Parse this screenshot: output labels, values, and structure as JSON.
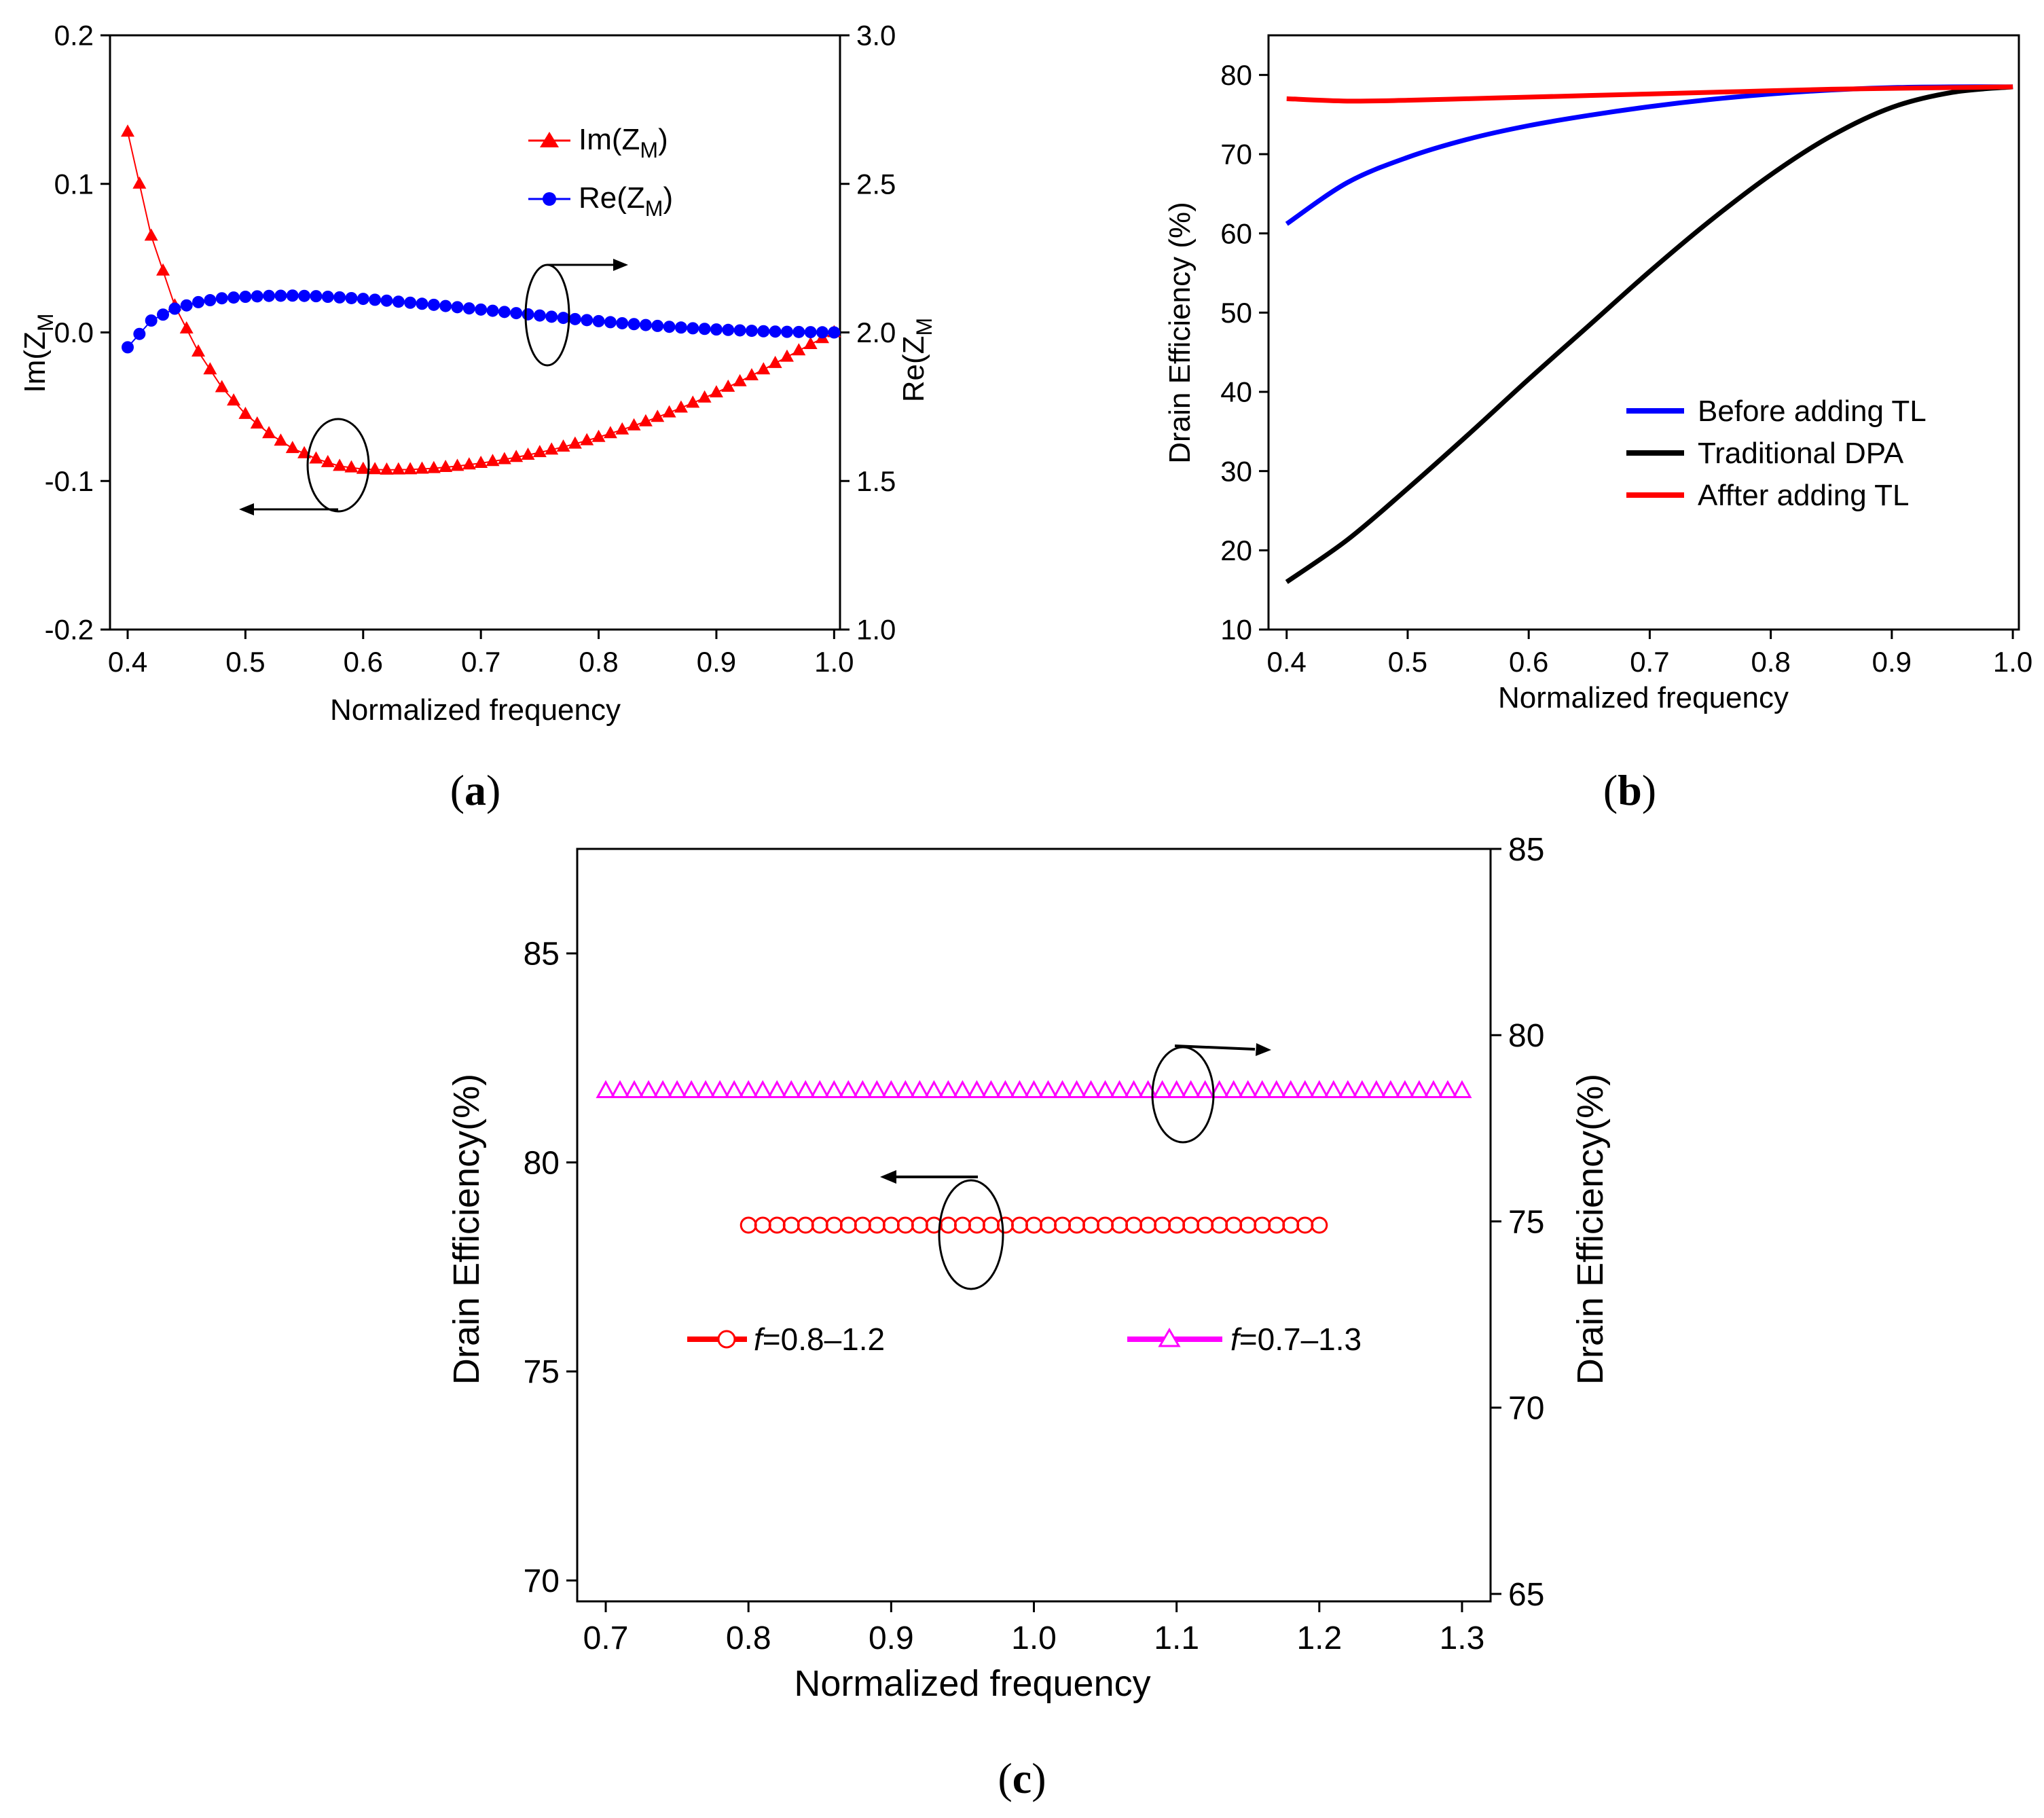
{
  "chart_data": [
    {
      "panel": "a",
      "type": "scatter",
      "panel_label": "a",
      "xlabel": "Normalized frequency",
      "ylabel_left": "Im(Z",
      "ylabel_right": "Re(Z",
      "ylabel_sub": "M",
      "xlim": [
        0.4,
        1.0
      ],
      "ylim_left": [
        -0.2,
        0.2
      ],
      "ylim_right": [
        1.0,
        3.0
      ],
      "xticks": [
        "0.4",
        "0.5",
        "0.6",
        "0.7",
        "0.8",
        "0.9",
        "1.0"
      ],
      "yticks_left": [
        "-0.2",
        "-0.1",
        "0.0",
        "0.1",
        "0.2"
      ],
      "yticks_right": [
        "1.0",
        "1.5",
        "2.0",
        "2.5",
        "3.0"
      ],
      "series": [
        {
          "name": "Im(Z",
          "sub": "M",
          "tail": ")",
          "axis": "left",
          "color": "#ff0000",
          "marker": "triangle",
          "x": [
            0.4,
            0.42,
            0.44,
            0.46,
            0.48,
            0.5,
            0.52,
            0.54,
            0.56,
            0.58,
            0.6,
            0.62,
            0.64,
            0.66,
            0.68,
            0.7,
            0.72,
            0.74,
            0.76,
            0.78,
            0.8,
            0.82,
            0.84,
            0.86,
            0.88,
            0.9,
            0.92,
            0.94,
            0.96,
            0.98,
            1.0
          ],
          "y": [
            0.135,
            0.065,
            0.018,
            -0.013,
            -0.037,
            -0.055,
            -0.068,
            -0.078,
            -0.085,
            -0.09,
            -0.092,
            -0.0925,
            -0.0923,
            -0.0915,
            -0.09,
            -0.088,
            -0.0855,
            -0.0825,
            -0.079,
            -0.075,
            -0.0705,
            -0.0655,
            -0.06,
            -0.054,
            -0.0475,
            -0.0405,
            -0.033,
            -0.025,
            -0.0165,
            -0.008,
            0.0
          ]
        },
        {
          "name": "Re(Z",
          "sub": "M",
          "tail": ")",
          "axis": "right",
          "color": "#0000ff",
          "marker": "circle",
          "x": [
            0.4,
            0.42,
            0.44,
            0.46,
            0.48,
            0.5,
            0.52,
            0.54,
            0.56,
            0.58,
            0.6,
            0.62,
            0.64,
            0.66,
            0.68,
            0.7,
            0.72,
            0.74,
            0.76,
            0.78,
            0.8,
            0.82,
            0.84,
            0.86,
            0.88,
            0.9,
            0.92,
            0.94,
            0.96,
            0.98,
            1.0
          ],
          "y": [
            1.95,
            2.04,
            2.08,
            2.102,
            2.115,
            2.12,
            2.123,
            2.124,
            2.122,
            2.118,
            2.113,
            2.107,
            2.1,
            2.093,
            2.085,
            2.077,
            2.069,
            2.061,
            2.053,
            2.045,
            2.038,
            2.031,
            2.025,
            2.019,
            2.014,
            2.01,
            2.007,
            2.004,
            2.002,
            2.001,
            2.0
          ]
        }
      ]
    },
    {
      "panel": "b",
      "type": "line",
      "panel_label": "b",
      "xlabel": "Normalized frequency",
      "ylabel": "Drain Efficiency (%)",
      "xlim": [
        0.4,
        1.0
      ],
      "ylim": [
        10,
        85
      ],
      "xticks": [
        "0.4",
        "0.5",
        "0.6",
        "0.7",
        "0.8",
        "0.9",
        "1.0"
      ],
      "yticks": [
        "10",
        "20",
        "30",
        "40",
        "50",
        "60",
        "70",
        "80"
      ],
      "series": [
        {
          "name": "Before adding TL",
          "color": "#0000ff",
          "x": [
            0.4,
            0.45,
            0.5,
            0.55,
            0.6,
            0.65,
            0.7,
            0.75,
            0.8,
            0.85,
            0.9,
            0.95,
            1.0
          ],
          "y": [
            61.2,
            66.4,
            69.6,
            71.9,
            73.6,
            74.9,
            76.0,
            76.9,
            77.6,
            78.1,
            78.4,
            78.5,
            78.5
          ]
        },
        {
          "name": "Traditional DPA",
          "color": "#000000",
          "x": [
            0.4,
            0.45,
            0.5,
            0.55,
            0.6,
            0.65,
            0.7,
            0.75,
            0.8,
            0.85,
            0.9,
            0.95,
            1.0
          ],
          "y": [
            16.0,
            21.3,
            27.8,
            34.6,
            41.6,
            48.4,
            55.2,
            61.6,
            67.4,
            72.3,
            75.9,
            77.8,
            78.5
          ]
        },
        {
          "name": "Affter adding TL",
          "color": "#ff0000",
          "x": [
            0.4,
            0.45,
            0.5,
            0.55,
            0.6,
            0.65,
            0.7,
            0.75,
            0.8,
            0.85,
            0.9,
            0.95,
            1.0
          ],
          "y": [
            77.0,
            76.7,
            76.8,
            77.0,
            77.2,
            77.4,
            77.6,
            77.8,
            78.0,
            78.2,
            78.3,
            78.4,
            78.5
          ]
        }
      ]
    },
    {
      "panel": "c",
      "type": "scatter",
      "panel_label": "c",
      "xlabel": "Normalized frequency",
      "ylabel_left": "Drain Efficiency(%)",
      "ylabel_right": "Drain Efficiency(%)",
      "xlim": [
        0.68,
        1.32
      ],
      "ylim_left": [
        69.5,
        87.5
      ],
      "ylim_right": [
        64.8,
        85.0
      ],
      "xticks": [
        "0.7",
        "0.8",
        "0.9",
        "1.0",
        "1.1",
        "1.2",
        "1.3"
      ],
      "yticks_left": [
        "70",
        "75",
        "80",
        "85"
      ],
      "yticks_right": [
        "65",
        "70",
        "75",
        "80",
        "85"
      ],
      "series": [
        {
          "name_prefix": "f",
          "name_rest": "=0.8–1.2",
          "axis": "left",
          "color": "#ff0000",
          "marker": "open-circle",
          "x_start": 0.8,
          "x_end": 1.2,
          "x_step": 0.01,
          "value": 78.5
        },
        {
          "name_prefix": "f",
          "name_rest": "=0.7–1.3",
          "axis": "right",
          "color": "#ff00ff",
          "marker": "open-triangle",
          "x_start": 0.7,
          "x_end": 1.3,
          "x_step": 0.01,
          "value": 78.5
        }
      ]
    }
  ]
}
